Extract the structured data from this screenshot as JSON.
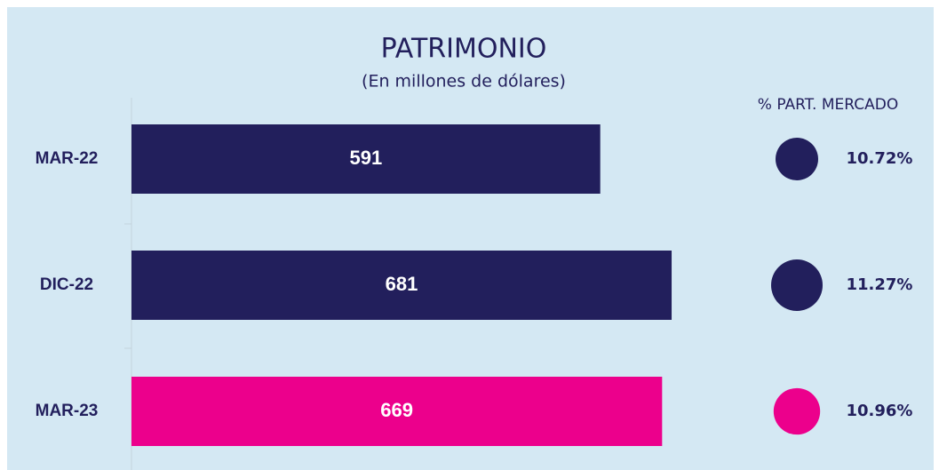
{
  "chart_data": {
    "type": "bar",
    "orientation": "horizontal",
    "title": "PATRIMONIO",
    "subtitle": "(En millones de dólares)",
    "categories": [
      "MAR-22",
      "DIC-22",
      "MAR-23"
    ],
    "values": [
      591,
      681,
      669
    ],
    "colors": [
      "#221f5c",
      "#221f5c",
      "#ec008c"
    ],
    "xlim": [
      0,
      700
    ],
    "share": {
      "title": "% PART. MERCADO",
      "values": [
        10.72,
        11.27,
        10.96
      ],
      "value_labels": [
        "10.72%",
        "11.27%",
        "10.96%"
      ]
    }
  }
}
